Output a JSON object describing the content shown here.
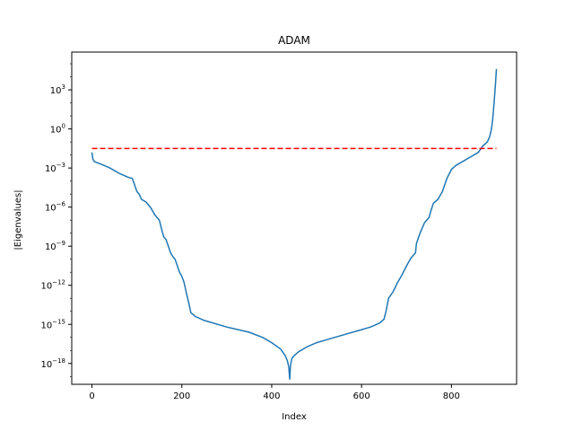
{
  "chart_data": {
    "type": "line",
    "title": "ADAM",
    "xlabel": "Index",
    "ylabel": "|Eigenvalues|",
    "yscale": "log",
    "xlim": [
      -45,
      945
    ],
    "ylim_log10": [
      -19.6,
      5.9
    ],
    "xticks": [
      0,
      200,
      400,
      600,
      800
    ],
    "yticks": [
      {
        "value": 3,
        "label": "10^3"
      },
      {
        "value": 0,
        "label": "10^0"
      },
      {
        "value": -3,
        "label": "10^-3"
      },
      {
        "value": -6,
        "label": "10^-6"
      },
      {
        "value": -9,
        "label": "10^-9"
      },
      {
        "value": -12,
        "label": "10^-12"
      },
      {
        "value": -15,
        "label": "10^-15"
      },
      {
        "value": -18,
        "label": "10^-18"
      }
    ],
    "grid": false,
    "series": [
      {
        "color": "#1f77b4",
        "style": "solid",
        "x": [
          0,
          2,
          5,
          20,
          40,
          60,
          80,
          90,
          95,
          100,
          105,
          110,
          115,
          120,
          130,
          140,
          150,
          155,
          160,
          165,
          170,
          175,
          180,
          185,
          190,
          195,
          200,
          205,
          210,
          215,
          220,
          230,
          250,
          300,
          350,
          380,
          400,
          420,
          430,
          435,
          438,
          440,
          442,
          445,
          450,
          460,
          480,
          500,
          550,
          600,
          620,
          640,
          650,
          655,
          660,
          670,
          680,
          690,
          700,
          710,
          720,
          722,
          725,
          730,
          740,
          750,
          755,
          760,
          770,
          780,
          790,
          800,
          810,
          820,
          840,
          860,
          870,
          880,
          885,
          888,
          890,
          892,
          895,
          898,
          900
        ],
        "log10_values": [
          -1.8,
          -2.3,
          -2.5,
          -2.7,
          -3.0,
          -3.4,
          -3.7,
          -3.8,
          -4.3,
          -4.8,
          -5.0,
          -5.4,
          -5.5,
          -5.6,
          -6.0,
          -6.6,
          -7.0,
          -7.7,
          -8.3,
          -8.5,
          -9.0,
          -9.5,
          -9.8,
          -10.0,
          -10.5,
          -11.0,
          -11.3,
          -11.8,
          -12.6,
          -13.3,
          -14.1,
          -14.4,
          -14.7,
          -15.2,
          -15.6,
          -16.0,
          -16.4,
          -16.9,
          -17.4,
          -17.8,
          -18.3,
          -19.2,
          -18.1,
          -17.6,
          -17.4,
          -17.1,
          -16.7,
          -16.4,
          -15.9,
          -15.4,
          -15.2,
          -14.9,
          -14.6,
          -13.9,
          -13.0,
          -12.5,
          -11.8,
          -11.2,
          -10.5,
          -9.9,
          -9.5,
          -8.8,
          -8.5,
          -8.0,
          -7.2,
          -6.8,
          -6.2,
          -5.7,
          -5.4,
          -4.8,
          -3.8,
          -3.1,
          -2.8,
          -2.6,
          -2.2,
          -1.8,
          -1.3,
          -1.0,
          -0.6,
          -0.2,
          0.2,
          0.8,
          2.0,
          3.5,
          4.6
        ]
      },
      {
        "color": "#ff0000",
        "style": "dashed",
        "x": [
          0,
          900
        ],
        "log10_values": [
          -1.5,
          -1.5
        ]
      }
    ]
  }
}
